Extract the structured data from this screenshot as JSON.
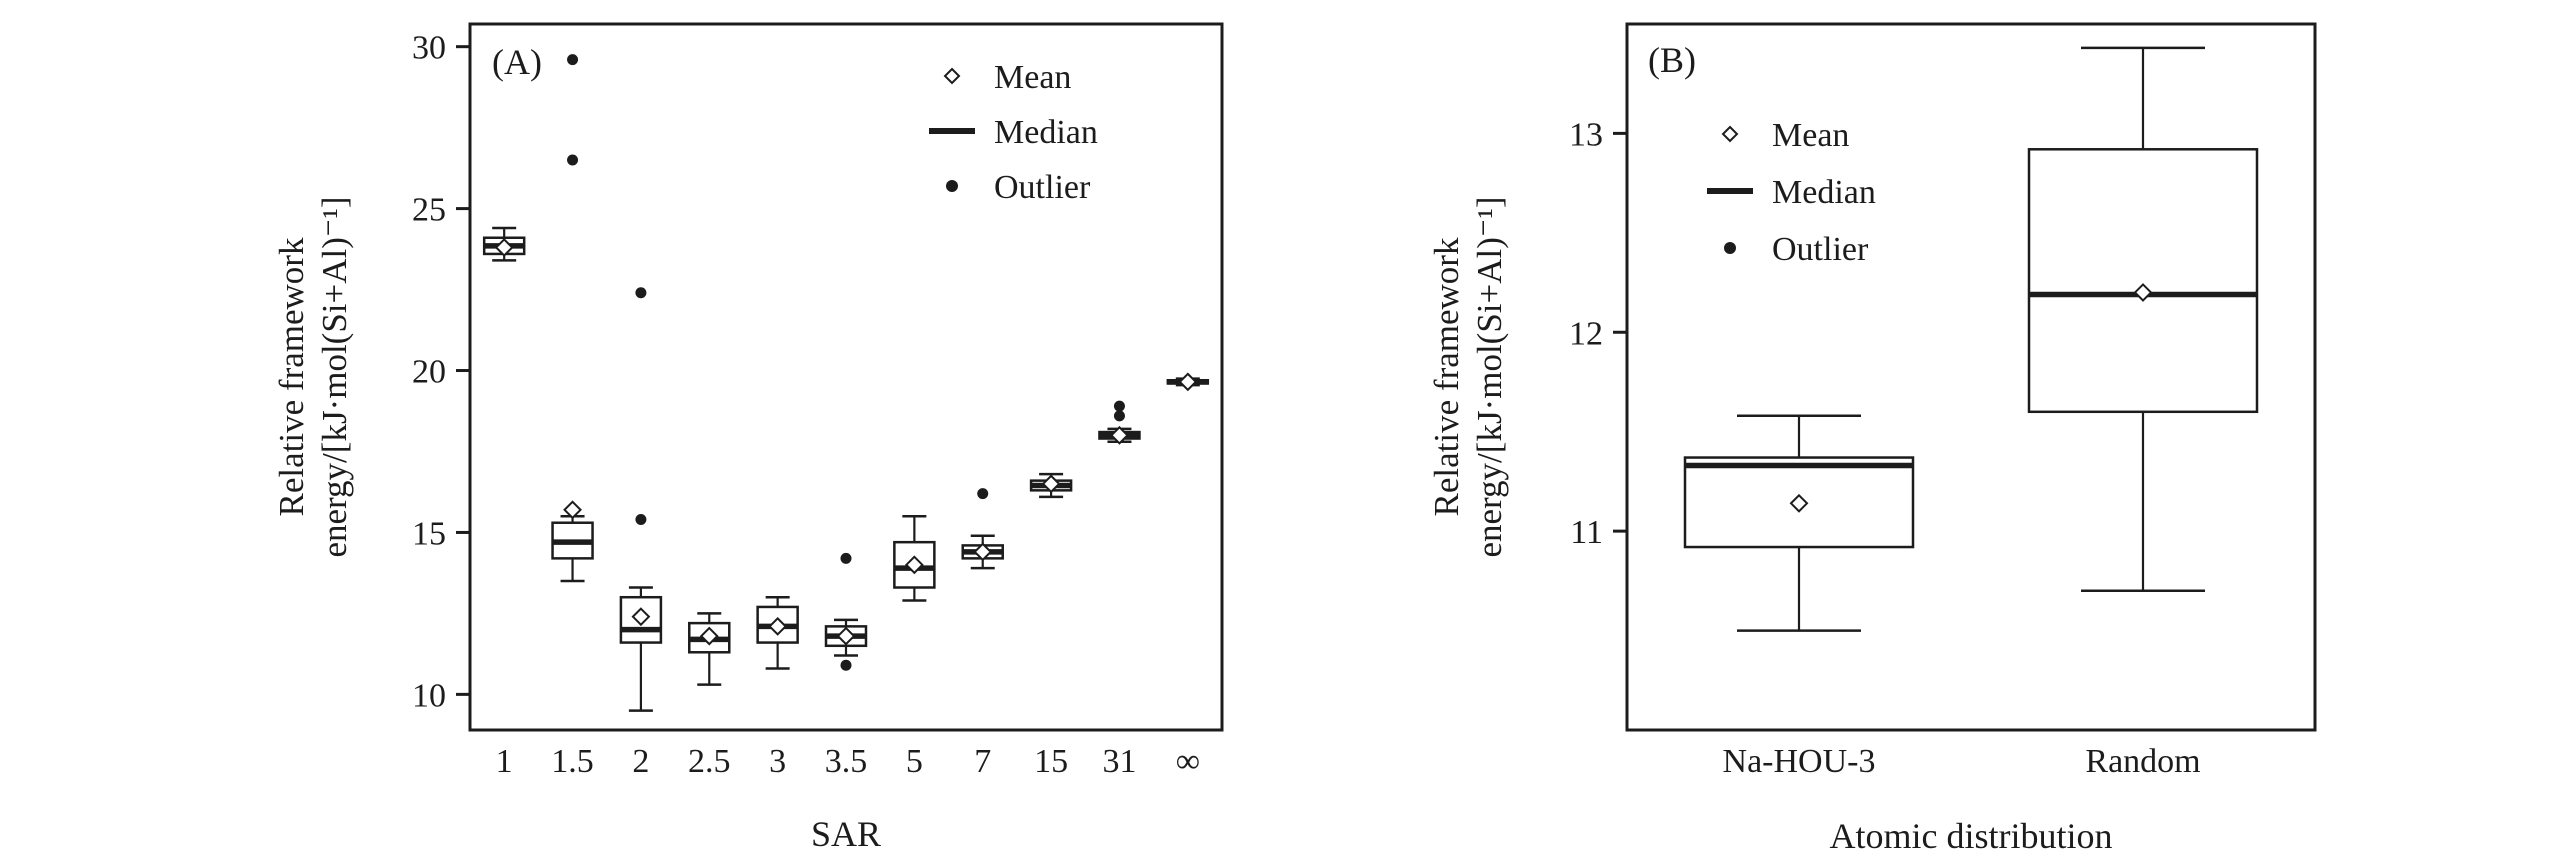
{
  "figure": {
    "background": "#ffffff",
    "ink_color": "#1c1c1c"
  },
  "chart_data": [
    {
      "type": "box",
      "panel_label": "(A)",
      "xlabel": "SAR",
      "ylabel_lines": [
        "Relative framework",
        "energy/[kJ·mol(Si+Al)⁻¹]"
      ],
      "ylim": [
        8.9,
        30.7
      ],
      "yticks": [
        10,
        15,
        20,
        25,
        30
      ],
      "legend": [
        "Mean",
        "Median",
        "Outlier"
      ],
      "legend_position": "top-right",
      "categories": [
        "1",
        "1.5",
        "2",
        "2.5",
        "3",
        "3.5",
        "5",
        "7",
        "15",
        "31",
        "∞"
      ],
      "boxes": [
        {
          "lo": 23.4,
          "q1": 23.6,
          "median": 23.85,
          "q3": 24.1,
          "hi": 24.4,
          "mean": 23.8,
          "outliers": []
        },
        {
          "lo": 13.5,
          "q1": 14.2,
          "median": 14.7,
          "q3": 15.3,
          "hi": 15.5,
          "mean": 15.7,
          "outliers": [
            26.5,
            29.6
          ]
        },
        {
          "lo": 9.5,
          "q1": 11.6,
          "median": 12.0,
          "q3": 13.0,
          "hi": 13.3,
          "mean": 12.4,
          "outliers": [
            15.4,
            22.4
          ]
        },
        {
          "lo": 10.3,
          "q1": 11.3,
          "median": 11.7,
          "q3": 12.2,
          "hi": 12.5,
          "mean": 11.8,
          "outliers": []
        },
        {
          "lo": 10.8,
          "q1": 11.6,
          "median": 12.1,
          "q3": 12.7,
          "hi": 13.0,
          "mean": 12.1,
          "outliers": []
        },
        {
          "lo": 11.2,
          "q1": 11.5,
          "median": 11.8,
          "q3": 12.1,
          "hi": 12.3,
          "mean": 11.8,
          "outliers": [
            10.9,
            14.2
          ]
        },
        {
          "lo": 12.9,
          "q1": 13.3,
          "median": 13.9,
          "q3": 14.7,
          "hi": 15.5,
          "mean": 14.0,
          "outliers": []
        },
        {
          "lo": 13.9,
          "q1": 14.2,
          "median": 14.4,
          "q3": 14.6,
          "hi": 14.9,
          "mean": 14.4,
          "outliers": [
            16.2
          ]
        },
        {
          "lo": 16.1,
          "q1": 16.3,
          "median": 16.45,
          "q3": 16.6,
          "hi": 16.8,
          "mean": 16.5,
          "outliers": []
        },
        {
          "lo": 17.8,
          "q1": 17.9,
          "median": 18.0,
          "q3": 18.1,
          "hi": 18.2,
          "mean": 18.0,
          "outliers": [
            18.6,
            18.9
          ]
        },
        {
          "lo": 19.55,
          "q1": 19.6,
          "median": 19.65,
          "q3": 19.7,
          "hi": 19.75,
          "mean": 19.65,
          "outliers": []
        }
      ]
    },
    {
      "type": "box",
      "panel_label": "(B)",
      "xlabel": "Atomic distribution",
      "ylabel_lines": [
        "Relative framework",
        "energy/[kJ·mol(Si+Al)⁻¹]"
      ],
      "ylim": [
        10.0,
        13.55
      ],
      "yticks": [
        11,
        12,
        13
      ],
      "legend": [
        "Mean",
        "Median",
        "Outlier"
      ],
      "legend_position": "top-left",
      "categories": [
        "Na-HOU-3",
        "Random"
      ],
      "boxes": [
        {
          "lo": 10.5,
          "q1": 10.92,
          "median": 11.33,
          "q3": 11.37,
          "hi": 11.58,
          "mean": 11.14,
          "outliers": []
        },
        {
          "lo": 10.7,
          "q1": 11.6,
          "median": 12.19,
          "q3": 12.92,
          "hi": 13.43,
          "mean": 12.2,
          "outliers": []
        }
      ]
    }
  ]
}
